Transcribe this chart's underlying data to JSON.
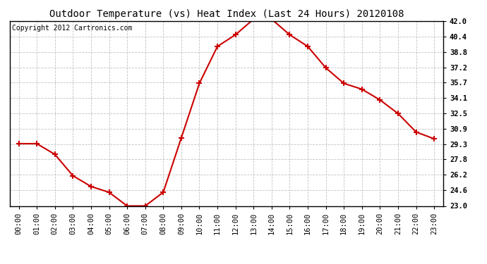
{
  "title": "Outdoor Temperature (vs) Heat Index (Last 24 Hours) 20120108",
  "copyright_text": "Copyright 2012 Cartronics.com",
  "x_labels": [
    "00:00",
    "01:00",
    "02:00",
    "03:00",
    "04:00",
    "05:00",
    "06:00",
    "07:00",
    "08:00",
    "09:00",
    "10:00",
    "11:00",
    "12:00",
    "13:00",
    "14:00",
    "15:00",
    "16:00",
    "17:00",
    "18:00",
    "19:00",
    "20:00",
    "21:00",
    "22:00",
    "23:00"
  ],
  "x_indices": [
    0,
    1,
    2,
    3,
    4,
    5,
    6,
    7,
    8,
    9,
    10,
    11,
    12,
    13,
    14,
    15,
    16,
    17,
    18,
    19,
    20,
    21,
    22,
    23
  ],
  "y_data": [
    29.4,
    29.4,
    28.3,
    26.1,
    25.0,
    24.4,
    23.0,
    23.0,
    24.4,
    30.0,
    35.6,
    39.4,
    40.6,
    42.2,
    42.2,
    40.6,
    39.4,
    37.2,
    35.6,
    35.0,
    33.9,
    32.5,
    30.6,
    29.9
  ],
  "y_min": 23.0,
  "y_max": 42.0,
  "y_ticks": [
    23.0,
    24.6,
    26.2,
    27.8,
    29.3,
    30.9,
    32.5,
    34.1,
    35.7,
    37.2,
    38.8,
    40.4,
    42.0
  ],
  "line_color": "#cc0000",
  "marker": "+",
  "marker_size": 6,
  "marker_linewidth": 1.5,
  "line_width": 1.5,
  "bg_color": "#ffffff",
  "grid_color": "#bbbbbb",
  "title_fontsize": 10,
  "tick_fontsize": 7.5,
  "copyright_fontsize": 7
}
